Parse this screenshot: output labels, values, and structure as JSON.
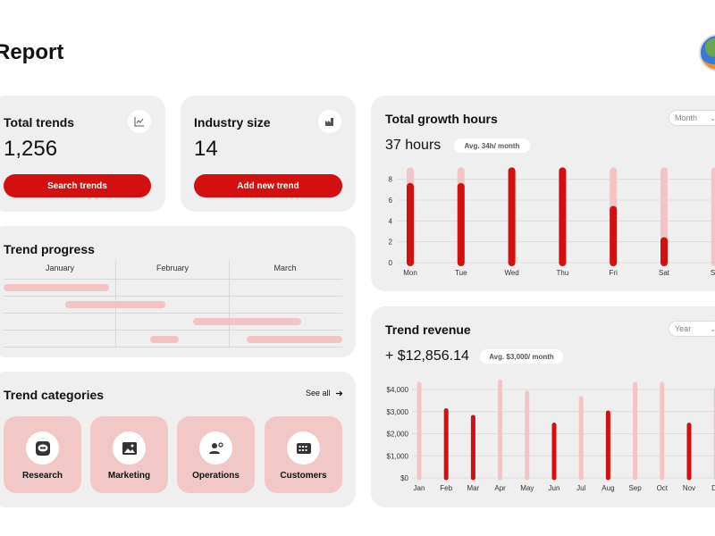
{
  "header": {
    "title": "Report"
  },
  "colors": {
    "accent": "#d40f0f",
    "accent_light": "#f2c4c4",
    "card_bg": "#efefef"
  },
  "total_trends": {
    "title": "Total trends",
    "value": "1,256",
    "icon": "line-chart-icon",
    "button_label": "Search trends"
  },
  "industry_size": {
    "title": "Industry size",
    "value": "14",
    "icon": "factory-icon",
    "button_label": "Add new trend"
  },
  "trend_progress": {
    "title": "Trend progress",
    "months": [
      "January",
      "February",
      "March"
    ]
  },
  "trend_categories": {
    "title": "Trend categories",
    "see_all": "See all",
    "items": [
      {
        "label": "Research",
        "icon": "line-app-icon"
      },
      {
        "label": "Marketing",
        "icon": "image-icon"
      },
      {
        "label": "Operations",
        "icon": "user-settings-icon"
      },
      {
        "label": "Customers",
        "icon": "calendar-grid-icon"
      }
    ]
  },
  "growth_hours": {
    "title": "Total growth hours",
    "select": "Month",
    "value": "37 hours",
    "avg": "Avg. 34h/ month"
  },
  "trend_revenue": {
    "title": "Trend revenue",
    "select": "Year",
    "value": "+ $12,856.14",
    "avg": "Avg. $3,000/ month"
  },
  "chart_data": [
    {
      "type": "bar",
      "categories": [
        "Mon",
        "Tue",
        "Wed",
        "Thu",
        "Fri",
        "Sat",
        "Su"
      ],
      "yticks": [
        0,
        2,
        4,
        6,
        8
      ],
      "ylim": [
        0,
        9
      ],
      "series": [
        {
          "values": [
            7.3,
            7.3,
            8.8,
            8.8,
            5.1,
            2.1,
            0
          ]
        },
        {
          "values": [
            8.8,
            8.8,
            8.8,
            8.8,
            8.8,
            8.8,
            8.8
          ]
        }
      ],
      "grid": true
    },
    {
      "type": "bar",
      "categories": [
        "Jan",
        "Feb",
        "Mar",
        "Apr",
        "May",
        "Jun",
        "Jul",
        "Aug",
        "Sep",
        "Oct",
        "Nov",
        "De"
      ],
      "yticks": [
        "$0",
        "$1,000",
        "$2,000",
        "$3,000",
        "$4,000"
      ],
      "ylim": [
        0,
        4400
      ],
      "series": [
        {
          "values": [
            4250,
            3050,
            2750,
            4350,
            3850,
            2400,
            3600,
            2950,
            4250,
            4250,
            2400,
            4000
          ]
        }
      ],
      "highlight": [
        false,
        true,
        true,
        false,
        false,
        true,
        false,
        true,
        false,
        false,
        true,
        false
      ],
      "grid": true
    }
  ]
}
